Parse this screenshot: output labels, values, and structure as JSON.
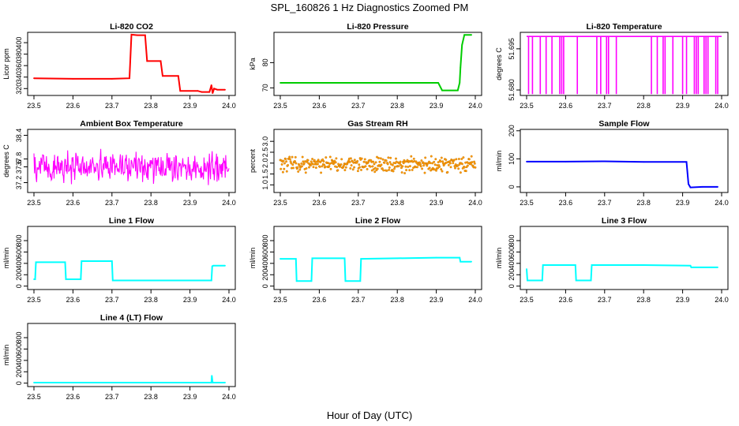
{
  "figure": {
    "title": "SPL_160826  1 Hz Diagnostics Zoomed PM",
    "xlabel": "Hour of Day (UTC)"
  },
  "chart_data": [
    {
      "type": "line",
      "title": "Li-820 CO2",
      "ylabel": "Licor ppm",
      "color": "#ff0000",
      "xlim": [
        23.5,
        24.0
      ],
      "ylim": [
        308,
        418
      ],
      "xticks": [
        "23.5",
        "23.6",
        "23.7",
        "23.8",
        "23.9",
        "24.0"
      ],
      "yticks": [
        {
          "v": 320,
          "l": "320"
        },
        {
          "v": 340,
          "l": "340"
        },
        {
          "v": 360,
          "l": "360"
        },
        {
          "v": 380,
          "l": "380"
        },
        {
          "v": 400,
          "l": "400"
        }
      ],
      "x": [
        23.5,
        23.6,
        23.7,
        23.745,
        23.75,
        23.765,
        23.785,
        23.79,
        23.825,
        23.83,
        23.87,
        23.875,
        23.92,
        23.93,
        23.95,
        23.955,
        23.958,
        23.962,
        23.97,
        23.99
      ],
      "y": [
        338,
        337,
        337,
        338,
        414,
        413,
        413,
        368,
        368,
        342,
        342,
        316,
        316,
        314,
        314,
        326,
        312,
        320,
        318,
        318
      ]
    },
    {
      "type": "line",
      "title": "Li-820 Pressure",
      "ylabel": "kPa",
      "color": "#00cc00",
      "xlim": [
        23.5,
        24.0
      ],
      "ylim": [
        67,
        92
      ],
      "xticks": [
        "23.5",
        "23.6",
        "23.7",
        "23.8",
        "23.9",
        "24.0"
      ],
      "yticks": [
        {
          "v": 70,
          "l": "70"
        },
        {
          "v": 80,
          "l": "80"
        }
      ],
      "x": [
        23.5,
        23.7,
        23.905,
        23.915,
        23.955,
        23.96,
        23.962,
        23.966,
        23.972,
        23.99
      ],
      "y": [
        72,
        72,
        72,
        69,
        69,
        72,
        78,
        87,
        91,
        91
      ]
    },
    {
      "type": "line",
      "title": "Li-820 Temperature",
      "ylabel": "degrees C",
      "color": "#ff00ff",
      "xlim": [
        23.5,
        24.0
      ],
      "ylim": [
        51.678,
        51.701
      ],
      "xticks": [
        "23.5",
        "23.6",
        "23.7",
        "23.8",
        "23.9",
        "24.0"
      ],
      "yticks": [
        {
          "v": 51.68,
          "l": "51.680"
        },
        {
          "v": 51.695,
          "l": "51.695"
        }
      ],
      "baseline": 51.6995,
      "low": 51.6785,
      "dips": [
        23.505,
        23.515,
        23.535,
        23.55,
        23.565,
        23.585,
        23.59,
        23.595,
        23.63,
        23.68,
        23.69,
        23.705,
        23.71,
        23.73,
        23.82,
        23.835,
        23.85,
        23.855,
        23.875,
        23.9,
        23.91,
        23.93,
        23.935,
        23.94,
        23.955,
        23.96,
        23.965,
        23.985,
        23.99
      ]
    },
    {
      "type": "line",
      "title": "Ambient Box Temperature",
      "ylabel": "degrees C",
      "color": "#ff00ff",
      "xlim": [
        23.5,
        24.0
      ],
      "ylim": [
        36.95,
        38.55
      ],
      "xticks": [
        "23.5",
        "23.6",
        "23.7",
        "23.8",
        "23.9",
        "24.0"
      ],
      "yticks": [
        {
          "v": 37.2,
          "l": "37.2"
        },
        {
          "v": 37.6,
          "l": "37.6"
        },
        {
          "v": 37.8,
          "l": "37.8"
        },
        {
          "v": 38.4,
          "l": "38.4"
        }
      ],
      "noise": {
        "center": 37.6,
        "amp": 0.55
      }
    },
    {
      "type": "scatter",
      "title": "Gas Stream RH",
      "ylabel": "percent",
      "color": "#ff9900",
      "xlim": [
        23.5,
        24.0
      ],
      "ylim": [
        0.65,
        3.55
      ],
      "xticks": [
        "23.5",
        "23.6",
        "23.7",
        "23.8",
        "23.9",
        "24.0"
      ],
      "yticks": [
        {
          "v": 1.0,
          "l": "1.0"
        },
        {
          "v": 1.5,
          "l": "1.5"
        },
        {
          "v": 2.0,
          "l": "2.0"
        },
        {
          "v": 2.5,
          "l": "2.5"
        },
        {
          "v": 3.0,
          "l": "3.0"
        }
      ],
      "noise": {
        "center": 1.95,
        "amp": 0.45
      }
    },
    {
      "type": "line",
      "title": "Sample Flow",
      "ylabel": "ml/min",
      "color": "#0000ff",
      "xlim": [
        23.5,
        24.0
      ],
      "ylim": [
        -20,
        205
      ],
      "xticks": [
        "23.5",
        "23.6",
        "23.7",
        "23.8",
        "23.9",
        "24.0"
      ],
      "yticks": [
        {
          "v": 0,
          "l": "0"
        },
        {
          "v": 100,
          "l": "100"
        },
        {
          "v": 200,
          "l": "200"
        }
      ],
      "x": [
        23.5,
        23.6,
        23.7,
        23.8,
        23.9,
        23.91,
        23.915,
        23.92,
        23.95,
        23.99
      ],
      "y": [
        90,
        90,
        91,
        89,
        89,
        89,
        10,
        -2,
        0,
        0
      ]
    },
    {
      "type": "line",
      "title": "Line 1 Flow",
      "ylabel": "ml/min",
      "color": "#00ffff",
      "xlim": [
        23.5,
        24.0
      ],
      "ylim": [
        -60,
        1050
      ],
      "xticks": [
        "23.5",
        "23.6",
        "23.7",
        "23.8",
        "23.9",
        "24.0"
      ],
      "yticks": [
        {
          "v": 0,
          "l": "0"
        },
        {
          "v": 200,
          "l": "200"
        },
        {
          "v": 400,
          "l": "400"
        },
        {
          "v": 600,
          "l": "600"
        },
        {
          "v": 800,
          "l": "800"
        }
      ],
      "x": [
        23.5,
        23.503,
        23.505,
        23.58,
        23.582,
        23.62,
        23.622,
        23.7,
        23.702,
        23.955,
        23.957,
        23.96,
        23.99
      ],
      "y": [
        120,
        120,
        420,
        420,
        120,
        120,
        440,
        440,
        100,
        100,
        350,
        360,
        360
      ]
    },
    {
      "type": "line",
      "title": "Line 2 Flow",
      "ylabel": "ml/min",
      "color": "#00ffff",
      "xlim": [
        23.5,
        24.0
      ],
      "ylim": [
        -60,
        1050
      ],
      "xticks": [
        "23.5",
        "23.6",
        "23.7",
        "23.8",
        "23.9",
        "24.0"
      ],
      "yticks": [
        {
          "v": 0,
          "l": "0"
        },
        {
          "v": 200,
          "l": "200"
        },
        {
          "v": 400,
          "l": "400"
        },
        {
          "v": 600,
          "l": "600"
        },
        {
          "v": 800,
          "l": "800"
        }
      ],
      "x": [
        23.5,
        23.54,
        23.542,
        23.58,
        23.582,
        23.665,
        23.667,
        23.705,
        23.707,
        23.8,
        23.9,
        23.96,
        23.962,
        23.99
      ],
      "y": [
        480,
        480,
        90,
        90,
        490,
        490,
        90,
        90,
        480,
        490,
        500,
        500,
        430,
        430
      ]
    },
    {
      "type": "line",
      "title": "Line 3 Flow",
      "ylabel": "ml/min",
      "color": "#00ffff",
      "xlim": [
        23.5,
        24.0
      ],
      "ylim": [
        -60,
        1050
      ],
      "xticks": [
        "23.5",
        "23.6",
        "23.7",
        "23.8",
        "23.9",
        "24.0"
      ],
      "yticks": [
        {
          "v": 0,
          "l": "0"
        },
        {
          "v": 200,
          "l": "200"
        },
        {
          "v": 400,
          "l": "400"
        },
        {
          "v": 600,
          "l": "600"
        },
        {
          "v": 800,
          "l": "800"
        }
      ],
      "x": [
        23.5,
        23.502,
        23.504,
        23.54,
        23.542,
        23.625,
        23.627,
        23.665,
        23.667,
        23.8,
        23.92,
        23.922,
        23.99
      ],
      "y": [
        300,
        100,
        100,
        100,
        370,
        370,
        100,
        100,
        370,
        370,
        360,
        330,
        330
      ]
    },
    {
      "type": "line",
      "title": "Line 4 (LT) Flow",
      "ylabel": "ml/min",
      "color": "#00ffff",
      "xlim": [
        23.5,
        24.0
      ],
      "ylim": [
        -60,
        1050
      ],
      "xticks": [
        "23.5",
        "23.6",
        "23.7",
        "23.8",
        "23.9",
        "24.0"
      ],
      "yticks": [
        {
          "v": 0,
          "l": "0"
        },
        {
          "v": 200,
          "l": "200"
        },
        {
          "v": 400,
          "l": "400"
        },
        {
          "v": 600,
          "l": "600"
        },
        {
          "v": 800,
          "l": "800"
        }
      ],
      "x": [
        23.5,
        23.7,
        23.955,
        23.956,
        23.958,
        23.96,
        23.99
      ],
      "y": [
        10,
        10,
        10,
        130,
        10,
        10,
        10
      ]
    }
  ]
}
